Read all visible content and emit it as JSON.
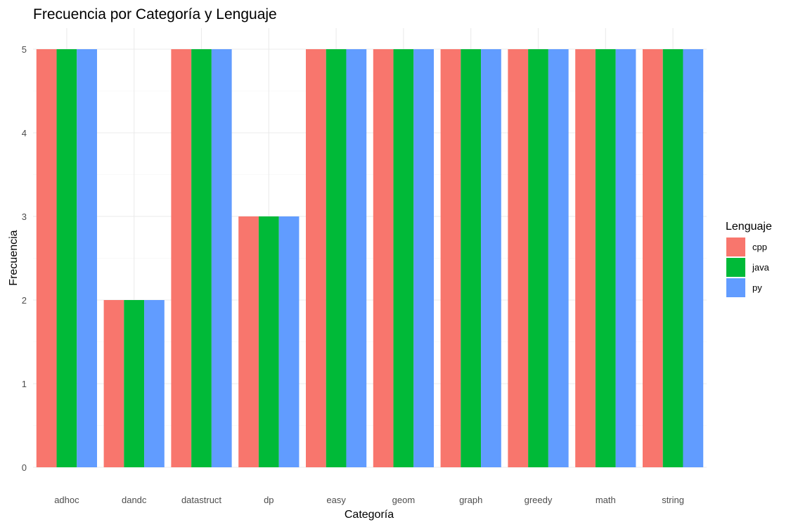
{
  "chart_data": {
    "type": "bar",
    "title": "Frecuencia por Categoría y Lenguaje",
    "xlabel": "Categoría",
    "ylabel": "Frecuencia",
    "categories": [
      "adhoc",
      "dandc",
      "datastruct",
      "dp",
      "easy",
      "geom",
      "graph",
      "greedy",
      "math",
      "string"
    ],
    "series": [
      {
        "name": "cpp",
        "color": "#F8766D",
        "values": [
          5,
          2,
          5,
          3,
          5,
          5,
          5,
          5,
          5,
          5
        ]
      },
      {
        "name": "java",
        "color": "#00BA38",
        "values": [
          5,
          2,
          5,
          3,
          5,
          5,
          5,
          5,
          5,
          5
        ]
      },
      {
        "name": "py",
        "color": "#619CFF",
        "values": [
          5,
          2,
          5,
          3,
          5,
          5,
          5,
          5,
          5,
          5
        ]
      }
    ],
    "ylim": [
      0,
      5
    ],
    "yticks": [
      0,
      1,
      2,
      3,
      4,
      5
    ],
    "grid": true,
    "legend": {
      "title": "Lenguaje",
      "position": "right"
    }
  }
}
